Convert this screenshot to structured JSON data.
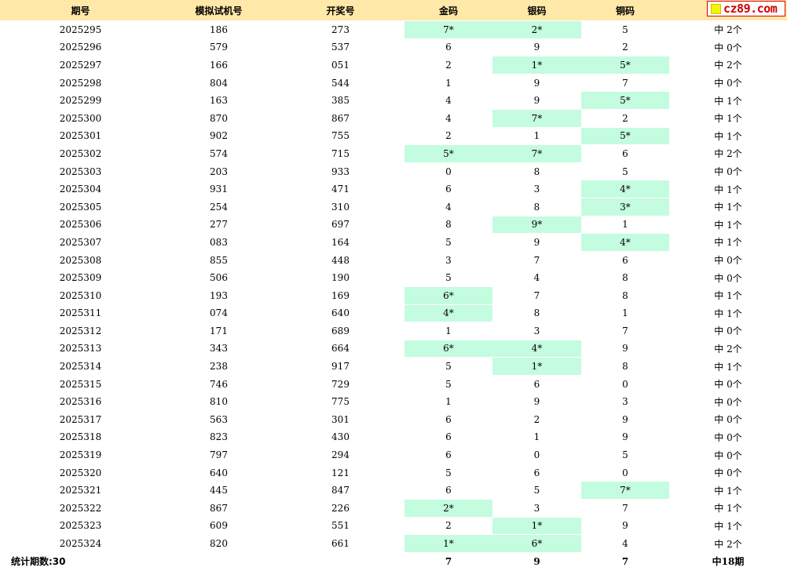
{
  "header": {
    "period": "期号",
    "sim_number": "模拟试机号",
    "draw_number": "开奖号",
    "gold": "金码",
    "silver": "银码",
    "bronze": "铜码"
  },
  "logo_text": "cz89.com",
  "rows": [
    {
      "period": "2025295",
      "sim": "186",
      "draw": "273",
      "gold": "7*",
      "gold_hit": true,
      "silver": "2*",
      "silver_hit": true,
      "bronze": "5",
      "bronze_hit": false,
      "result": "中 2个"
    },
    {
      "period": "2025296",
      "sim": "579",
      "draw": "537",
      "gold": "6",
      "gold_hit": false,
      "silver": "9",
      "silver_hit": false,
      "bronze": "2",
      "bronze_hit": false,
      "result": "中 0个"
    },
    {
      "period": "2025297",
      "sim": "166",
      "draw": "051",
      "gold": "2",
      "gold_hit": false,
      "silver": "1*",
      "silver_hit": true,
      "bronze": "5*",
      "bronze_hit": true,
      "result": "中 2个"
    },
    {
      "period": "2025298",
      "sim": "804",
      "draw": "544",
      "gold": "1",
      "gold_hit": false,
      "silver": "9",
      "silver_hit": false,
      "bronze": "7",
      "bronze_hit": false,
      "result": "中 0个"
    },
    {
      "period": "2025299",
      "sim": "163",
      "draw": "385",
      "gold": "4",
      "gold_hit": false,
      "silver": "9",
      "silver_hit": false,
      "bronze": "5*",
      "bronze_hit": true,
      "result": "中 1个"
    },
    {
      "period": "2025300",
      "sim": "870",
      "draw": "867",
      "gold": "4",
      "gold_hit": false,
      "silver": "7*",
      "silver_hit": true,
      "bronze": "2",
      "bronze_hit": false,
      "result": "中 1个"
    },
    {
      "period": "2025301",
      "sim": "902",
      "draw": "755",
      "gold": "2",
      "gold_hit": false,
      "silver": "1",
      "silver_hit": false,
      "bronze": "5*",
      "bronze_hit": true,
      "result": "中 1个"
    },
    {
      "period": "2025302",
      "sim": "574",
      "draw": "715",
      "gold": "5*",
      "gold_hit": true,
      "silver": "7*",
      "silver_hit": true,
      "bronze": "6",
      "bronze_hit": false,
      "result": "中 2个"
    },
    {
      "period": "2025303",
      "sim": "203",
      "draw": "933",
      "gold": "0",
      "gold_hit": false,
      "silver": "8",
      "silver_hit": false,
      "bronze": "5",
      "bronze_hit": false,
      "result": "中 0个"
    },
    {
      "period": "2025304",
      "sim": "931",
      "draw": "471",
      "gold": "6",
      "gold_hit": false,
      "silver": "3",
      "silver_hit": false,
      "bronze": "4*",
      "bronze_hit": true,
      "result": "中 1个"
    },
    {
      "period": "2025305",
      "sim": "254",
      "draw": "310",
      "gold": "4",
      "gold_hit": false,
      "silver": "8",
      "silver_hit": false,
      "bronze": "3*",
      "bronze_hit": true,
      "result": "中 1个"
    },
    {
      "period": "2025306",
      "sim": "277",
      "draw": "697",
      "gold": "8",
      "gold_hit": false,
      "silver": "9*",
      "silver_hit": true,
      "bronze": "1",
      "bronze_hit": false,
      "result": "中 1个"
    },
    {
      "period": "2025307",
      "sim": "083",
      "draw": "164",
      "gold": "5",
      "gold_hit": false,
      "silver": "9",
      "silver_hit": false,
      "bronze": "4*",
      "bronze_hit": true,
      "result": "中 1个"
    },
    {
      "period": "2025308",
      "sim": "855",
      "draw": "448",
      "gold": "3",
      "gold_hit": false,
      "silver": "7",
      "silver_hit": false,
      "bronze": "6",
      "bronze_hit": false,
      "result": "中 0个"
    },
    {
      "period": "2025309",
      "sim": "506",
      "draw": "190",
      "gold": "5",
      "gold_hit": false,
      "silver": "4",
      "silver_hit": false,
      "bronze": "8",
      "bronze_hit": false,
      "result": "中 0个"
    },
    {
      "period": "2025310",
      "sim": "193",
      "draw": "169",
      "gold": "6*",
      "gold_hit": true,
      "silver": "7",
      "silver_hit": false,
      "bronze": "8",
      "bronze_hit": false,
      "result": "中 1个"
    },
    {
      "period": "2025311",
      "sim": "074",
      "draw": "640",
      "gold": "4*",
      "gold_hit": true,
      "silver": "8",
      "silver_hit": false,
      "bronze": "1",
      "bronze_hit": false,
      "result": "中 1个"
    },
    {
      "period": "2025312",
      "sim": "171",
      "draw": "689",
      "gold": "1",
      "gold_hit": false,
      "silver": "3",
      "silver_hit": false,
      "bronze": "7",
      "bronze_hit": false,
      "result": "中 0个"
    },
    {
      "period": "2025313",
      "sim": "343",
      "draw": "664",
      "gold": "6*",
      "gold_hit": true,
      "silver": "4*",
      "silver_hit": true,
      "bronze": "9",
      "bronze_hit": false,
      "result": "中 2个"
    },
    {
      "period": "2025314",
      "sim": "238",
      "draw": "917",
      "gold": "5",
      "gold_hit": false,
      "silver": "1*",
      "silver_hit": true,
      "bronze": "8",
      "bronze_hit": false,
      "result": "中 1个"
    },
    {
      "period": "2025315",
      "sim": "746",
      "draw": "729",
      "gold": "5",
      "gold_hit": false,
      "silver": "6",
      "silver_hit": false,
      "bronze": "0",
      "bronze_hit": false,
      "result": "中 0个"
    },
    {
      "period": "2025316",
      "sim": "810",
      "draw": "775",
      "gold": "1",
      "gold_hit": false,
      "silver": "9",
      "silver_hit": false,
      "bronze": "3",
      "bronze_hit": false,
      "result": "中 0个"
    },
    {
      "period": "2025317",
      "sim": "563",
      "draw": "301",
      "gold": "6",
      "gold_hit": false,
      "silver": "2",
      "silver_hit": false,
      "bronze": "9",
      "bronze_hit": false,
      "result": "中 0个"
    },
    {
      "period": "2025318",
      "sim": "823",
      "draw": "430",
      "gold": "6",
      "gold_hit": false,
      "silver": "1",
      "silver_hit": false,
      "bronze": "9",
      "bronze_hit": false,
      "result": "中 0个"
    },
    {
      "period": "2025319",
      "sim": "797",
      "draw": "294",
      "gold": "6",
      "gold_hit": false,
      "silver": "0",
      "silver_hit": false,
      "bronze": "5",
      "bronze_hit": false,
      "result": "中 0个"
    },
    {
      "period": "2025320",
      "sim": "640",
      "draw": "121",
      "gold": "5",
      "gold_hit": false,
      "silver": "6",
      "silver_hit": false,
      "bronze": "0",
      "bronze_hit": false,
      "result": "中 0个"
    },
    {
      "period": "2025321",
      "sim": "445",
      "draw": "847",
      "gold": "6",
      "gold_hit": false,
      "silver": "5",
      "silver_hit": false,
      "bronze": "7*",
      "bronze_hit": true,
      "result": "中 1个"
    },
    {
      "period": "2025322",
      "sim": "867",
      "draw": "226",
      "gold": "2*",
      "gold_hit": true,
      "silver": "3",
      "silver_hit": false,
      "bronze": "7",
      "bronze_hit": false,
      "result": "中 1个"
    },
    {
      "period": "2025323",
      "sim": "609",
      "draw": "551",
      "gold": "2",
      "gold_hit": false,
      "silver": "1*",
      "silver_hit": true,
      "bronze": "9",
      "bronze_hit": false,
      "result": "中 1个"
    },
    {
      "period": "2025324",
      "sim": "820",
      "draw": "661",
      "gold": "1*",
      "gold_hit": true,
      "silver": "6*",
      "silver_hit": true,
      "bronze": "4",
      "bronze_hit": false,
      "result": "中 2个"
    }
  ],
  "footer": {
    "label": "统计期数:30",
    "gold_total": "7",
    "silver_total": "9",
    "bronze_total": "7",
    "result_total": "中18期"
  },
  "colors": {
    "header_bg": "#ffe8a8",
    "hit_bg": "#c4fce0",
    "logo_red": "#d00000"
  }
}
